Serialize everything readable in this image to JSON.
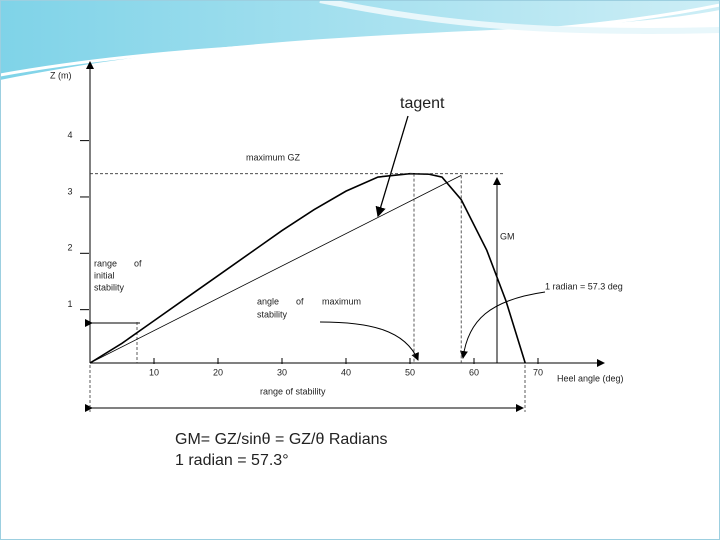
{
  "chart_data": {
    "type": "line",
    "x_label": "Heel angle (deg)",
    "y_label": "Z (m)",
    "x": [
      0,
      5,
      10,
      15,
      20,
      25,
      30,
      35,
      40,
      45,
      50,
      53,
      55,
      58,
      62,
      65,
      68
    ],
    "values": [
      0,
      0.35,
      0.75,
      1.15,
      1.55,
      1.95,
      2.35,
      2.72,
      3.05,
      3.3,
      3.36,
      3.35,
      3.3,
      2.9,
      2.0,
      1.1,
      0
    ],
    "color": "#000000",
    "tangent": {
      "x": [
        0,
        58
      ],
      "values": [
        0,
        3.33
      ]
    },
    "xlim": [
      0,
      80
    ],
    "ylim": [
      0,
      5.2
    ],
    "xticks": [
      10,
      20,
      30,
      40,
      50,
      60,
      70
    ],
    "yticks": [
      1,
      2,
      3,
      4
    ],
    "annotations": {
      "tagent": "tagent",
      "maximum_gz": "maximum GZ",
      "gm": "GM",
      "range_initial": [
        "range",
        "of",
        "initial",
        "stability"
      ],
      "angle_max": [
        "angle",
        "of",
        "maximum",
        "stability"
      ],
      "radian": "1 radian = 57.3 deg",
      "range_stability": "range of stability"
    },
    "formula": [
      "GM= GZ/sinθ = GZ/θ Radians",
      "1 radian = 57.3°"
    ]
  }
}
